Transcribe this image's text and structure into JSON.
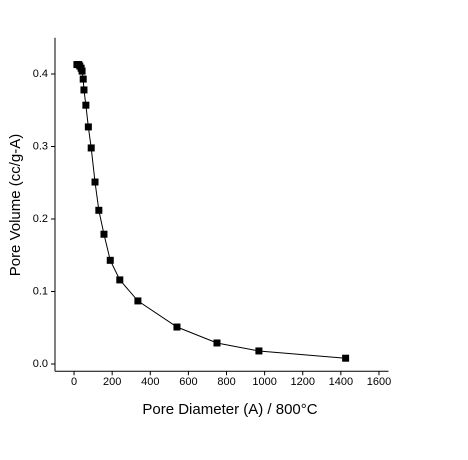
{
  "chart_data": {
    "type": "line",
    "x_label": "Pore Diameter (A) / 800°C",
    "y_label": "Pore Volume (cc/g-A)",
    "x": [
      15,
      25,
      30,
      37,
      42,
      48,
      52,
      62,
      75,
      90,
      110,
      130,
      157,
      190,
      240,
      335,
      540,
      750,
      970,
      1425
    ],
    "series": [
      {
        "color": "#000000",
        "values": [
          0.413,
          0.413,
          0.411,
          0.408,
          0.404,
          0.393,
          0.378,
          0.357,
          0.327,
          0.298,
          0.251,
          0.212,
          0.179,
          0.143,
          0.116,
          0.087,
          0.051,
          0.029,
          0.018,
          0.008
        ]
      }
    ],
    "xlim": [
      -100,
      1650
    ],
    "ylim": [
      -0.01,
      0.45
    ],
    "xticks": [
      0,
      200,
      400,
      600,
      800,
      1000,
      1200,
      1400,
      1600
    ],
    "yticks": [
      {
        "value": 0,
        "label": "0.0"
      },
      0.1,
      0.2,
      0.3,
      0.4
    ]
  }
}
